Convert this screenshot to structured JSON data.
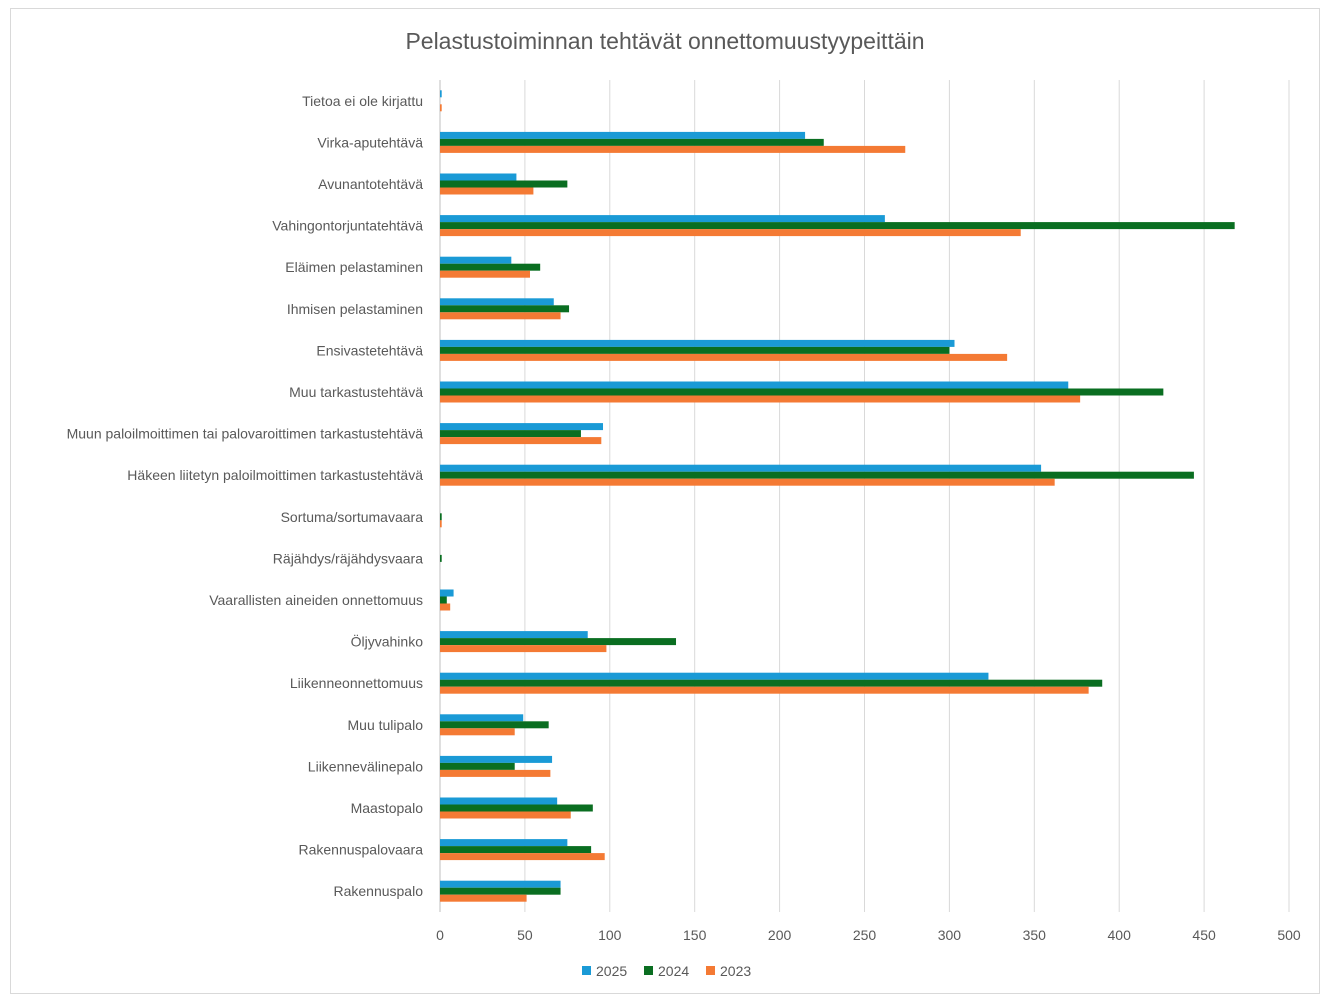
{
  "chart_data": {
    "type": "bar",
    "orientation": "horizontal",
    "title": "Pelastustoiminnan tehtävät onnettomuustyypeittäin",
    "categories": [
      "Tietoa ei ole kirjattu",
      "Virka-aputehtävä",
      "Avunantotehtävä",
      "Vahingontorjuntatehtävä",
      "Eläimen pelastaminen",
      "Ihmisen pelastaminen",
      "Ensivastetehtävä",
      "Muu tarkastustehtävä",
      "Muun paloilmoittimen tai palovaroittimen tarkastustehtävä",
      "Häkeen liitetyn paloilmoittimen tarkastustehtävä",
      "Sortuma/sortumavaara",
      "Räjähdys/räjähdysvaara",
      "Vaarallisten aineiden onnettomuus",
      "Öljyvahinko",
      "Liikenneonnettomuus",
      "Muu tulipalo",
      "Liikennevälinepalo",
      "Maastopalo",
      "Rakennuspalovaara",
      "Rakennuspalo"
    ],
    "series": [
      {
        "name": "2025",
        "color": "#1a9ad6",
        "values": [
          1,
          215,
          45,
          262,
          42,
          67,
          303,
          370,
          96,
          354,
          0,
          0,
          8,
          87,
          323,
          49,
          66,
          69,
          75,
          71
        ]
      },
      {
        "name": "2024",
        "color": "#0a6e21",
        "values": [
          0,
          226,
          75,
          468,
          59,
          76,
          300,
          426,
          83,
          444,
          1,
          1,
          4,
          139,
          390,
          64,
          44,
          90,
          89,
          71
        ]
      },
      {
        "name": "2023",
        "color": "#f47a34",
        "values": [
          1,
          274,
          55,
          342,
          53,
          71,
          334,
          377,
          95,
          362,
          1,
          0,
          6,
          98,
          382,
          44,
          65,
          77,
          97,
          51
        ]
      }
    ],
    "xlim": [
      0,
      500
    ],
    "xticks": [
      0,
      50,
      100,
      150,
      200,
      250,
      300,
      350,
      400,
      450,
      500
    ],
    "grid": "vertical",
    "legend": "bottom"
  }
}
